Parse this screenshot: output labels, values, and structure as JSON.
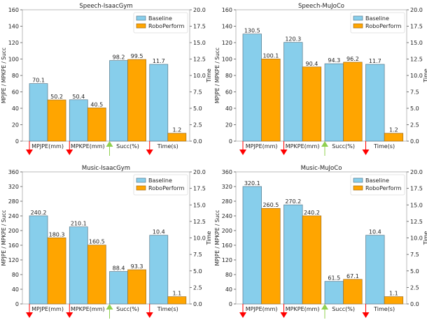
{
  "chart_data": [
    {
      "type": "bar",
      "title": "Speech-IsaacGym",
      "categories": [
        "MPJPE(mm)",
        "MPKPE(mm)",
        "Succ(%)",
        "Time(s)"
      ],
      "category_direction": [
        "down",
        "down",
        "up",
        "down"
      ],
      "series": [
        {
          "name": "Baseline",
          "values": [
            70.1,
            50.4,
            98.2,
            11.7
          ]
        },
        {
          "name": "RoboPerform",
          "values": [
            50.2,
            40.5,
            99.5,
            1.2
          ]
        }
      ],
      "secondary_axis_categories": [
        "Time(s)"
      ],
      "ylabel": "MPJPE / MPKPE / Succ",
      "y2label": "Time",
      "ylim": [
        0,
        160
      ],
      "y2lim": [
        0,
        20
      ],
      "yticks": [
        0,
        20,
        40,
        60,
        80,
        100,
        120,
        140,
        160
      ],
      "y2ticks": [
        "0.0",
        "2.5",
        "5.0",
        "7.5",
        "10.0",
        "12.5",
        "15.0",
        "17.5",
        "20.0"
      ],
      "legend": "top-right",
      "grid": false
    },
    {
      "type": "bar",
      "title": "Speech-MuJoCo",
      "categories": [
        "MPJPE(mm)",
        "MPKPE(mm)",
        "Succ(%)",
        "Time(s)"
      ],
      "category_direction": [
        "down",
        "down",
        "up",
        "down"
      ],
      "series": [
        {
          "name": "Baseline",
          "values": [
            130.5,
            120.3,
            94.3,
            11.7
          ]
        },
        {
          "name": "RoboPerform",
          "values": [
            100.1,
            90.4,
            96.2,
            1.2
          ]
        }
      ],
      "secondary_axis_categories": [
        "Time(s)"
      ],
      "ylabel": "MPJPE / MPKPE / Succ",
      "y2label": "Time",
      "ylim": [
        0,
        160
      ],
      "y2lim": [
        0,
        20
      ],
      "yticks": [
        0,
        20,
        40,
        60,
        80,
        100,
        120,
        140,
        160
      ],
      "y2ticks": [
        "0.0",
        "2.5",
        "5.0",
        "7.5",
        "10.0",
        "12.5",
        "15.0",
        "17.5",
        "20.0"
      ],
      "legend": "top-right",
      "grid": false
    },
    {
      "type": "bar",
      "title": "Music-IsaacGym",
      "categories": [
        "MPJPE(mm)",
        "MPKPE(mm)",
        "Succ(%)",
        "Time(s)"
      ],
      "category_direction": [
        "down",
        "down",
        "up",
        "down"
      ],
      "series": [
        {
          "name": "Baseline",
          "values": [
            240.2,
            210.1,
            88.4,
            10.4
          ]
        },
        {
          "name": "RoboPerform",
          "values": [
            180.3,
            160.5,
            93.3,
            1.1
          ]
        }
      ],
      "secondary_axis_categories": [
        "Time(s)"
      ],
      "ylabel": "MPJPE / MPKPE / Succ",
      "y2label": "Time",
      "ylim": [
        0,
        360
      ],
      "y2lim": [
        0,
        20
      ],
      "yticks": [
        0,
        40,
        80,
        120,
        160,
        200,
        240,
        280,
        320,
        360
      ],
      "y2ticks": [
        "0.0",
        "2.5",
        "5.0",
        "7.5",
        "10.0",
        "12.5",
        "15.0",
        "17.5",
        "20.0"
      ],
      "legend": "top-right",
      "grid": false
    },
    {
      "type": "bar",
      "title": "Music-MuJoCo",
      "categories": [
        "MPJPE(mm)",
        "MPKPE(mm)",
        "Succ(%)",
        "Time(s)"
      ],
      "category_direction": [
        "down",
        "down",
        "up",
        "down"
      ],
      "series": [
        {
          "name": "Baseline",
          "values": [
            320.1,
            270.2,
            61.5,
            10.4
          ]
        },
        {
          "name": "RoboPerform",
          "values": [
            260.5,
            240.2,
            67.1,
            1.1
          ]
        }
      ],
      "secondary_axis_categories": [
        "Time(s)"
      ],
      "ylabel": "MPJPE / MPKPE / Succ",
      "y2label": "Time",
      "ylim": [
        0,
        360
      ],
      "y2lim": [
        0,
        20
      ],
      "yticks": [
        0,
        40,
        80,
        120,
        160,
        200,
        240,
        280,
        320,
        360
      ],
      "y2ticks": [
        "0.0",
        "2.5",
        "5.0",
        "7.5",
        "10.0",
        "12.5",
        "15.0",
        "17.5",
        "20.0"
      ],
      "legend": "top-right",
      "grid": false
    }
  ],
  "colors": {
    "Baseline": "#87ceeb",
    "RoboPerform": "#ffa500",
    "down_arrow": "#ff0000",
    "up_arrow": "#90d050",
    "bar_edge": "#5a7a8c",
    "axis": "#bbbbbb"
  }
}
